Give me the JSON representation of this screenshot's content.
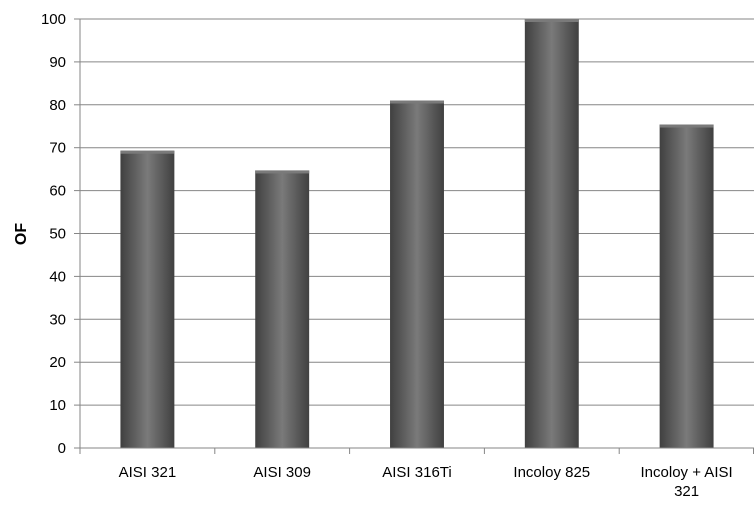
{
  "chart_data": {
    "type": "bar",
    "title": "",
    "xlabel": "",
    "ylabel": "OF",
    "ylim": [
      0,
      100
    ],
    "yticks": [
      0,
      10,
      20,
      30,
      40,
      50,
      60,
      70,
      80,
      90,
      100
    ],
    "grid": true,
    "legend": "none",
    "categories": [
      "AISI 321",
      "AISI 309",
      "AISI 316Ti",
      "Incoloy 825",
      "Incoloy + AISI 321"
    ],
    "category_lines": [
      [
        "AISI 321"
      ],
      [
        "AISI 309"
      ],
      [
        "AISI 316Ti"
      ],
      [
        "Incoloy 825"
      ],
      [
        "Incoloy + AISI",
        "321"
      ]
    ],
    "values": [
      69.3,
      64.7,
      81,
      100,
      75.4
    ],
    "colors": {
      "bar": "#5a5a5a",
      "bar_dark": "#404040",
      "bar_light": "#7a7a7a",
      "grid": "#868686",
      "axis": "#868686"
    }
  }
}
